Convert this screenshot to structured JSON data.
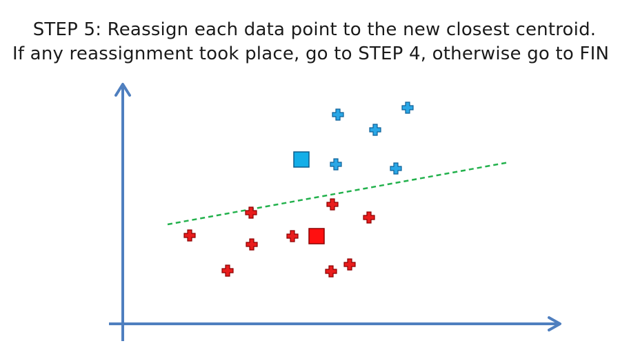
{
  "slide": {
    "title_line_1": "STEP 5: Reassign each data point to the new closest centroid.",
    "title_line_2": "If any reassignment took place, go to STEP 4, otherwise go to FIN"
  },
  "colors": {
    "axis": "#4f7fbf",
    "blue_point_fill": "#2aa7e6",
    "blue_point_stroke": "#0d5f96",
    "red_point_fill": "#e81c1c",
    "red_point_stroke": "#8a0000",
    "blue_centroid_fill": "#13aee8",
    "blue_centroid_stroke": "#0b5c8c",
    "red_centroid_fill": "#ff1010",
    "red_centroid_stroke": "#8a0000",
    "boundary_line": "#22b14c"
  },
  "icons": {
    "point_marker": "plus-cross",
    "centroid_marker": "square"
  }
}
